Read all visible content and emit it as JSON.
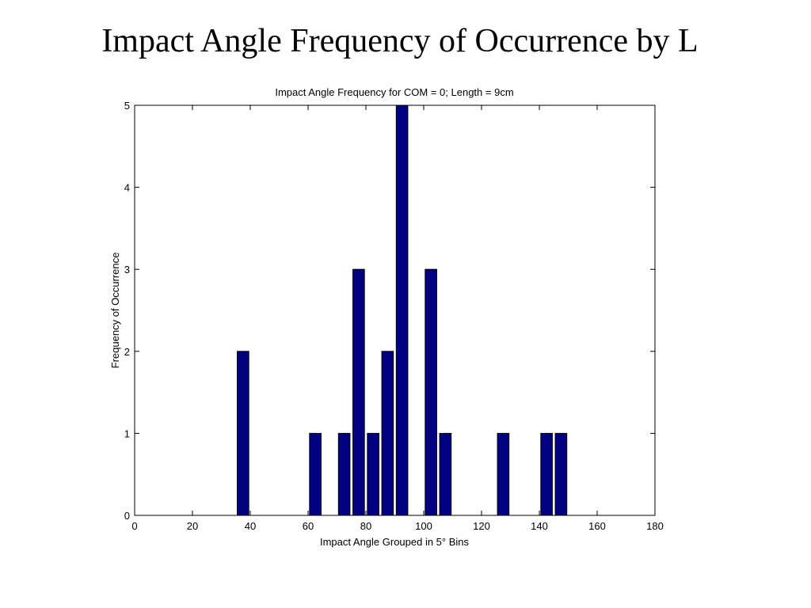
{
  "slide": {
    "title": "Impact Angle Frequency of Occurrence by L"
  },
  "chart_data": {
    "type": "bar",
    "title": "Impact Angle Frequency for COM = 0; Length = 9cm",
    "xlabel": "Impact Angle Grouped in 5° Bins",
    "ylabel": "Frequency of Occurrence",
    "xlim": [
      0,
      180
    ],
    "ylim": [
      0,
      5
    ],
    "xticks": [
      0,
      20,
      40,
      60,
      80,
      100,
      120,
      140,
      160,
      180
    ],
    "yticks": [
      0,
      1,
      2,
      3,
      4,
      5
    ],
    "bar_color": "#000080",
    "grid": false,
    "bin_width": 5,
    "x": [
      37.5,
      62.5,
      72.5,
      77.5,
      82.5,
      87.5,
      92.5,
      102.5,
      107.5,
      127.5,
      142.5,
      147.5
    ],
    "values": [
      2,
      1,
      1,
      3,
      1,
      2,
      5,
      3,
      1,
      1,
      1,
      1
    ]
  }
}
